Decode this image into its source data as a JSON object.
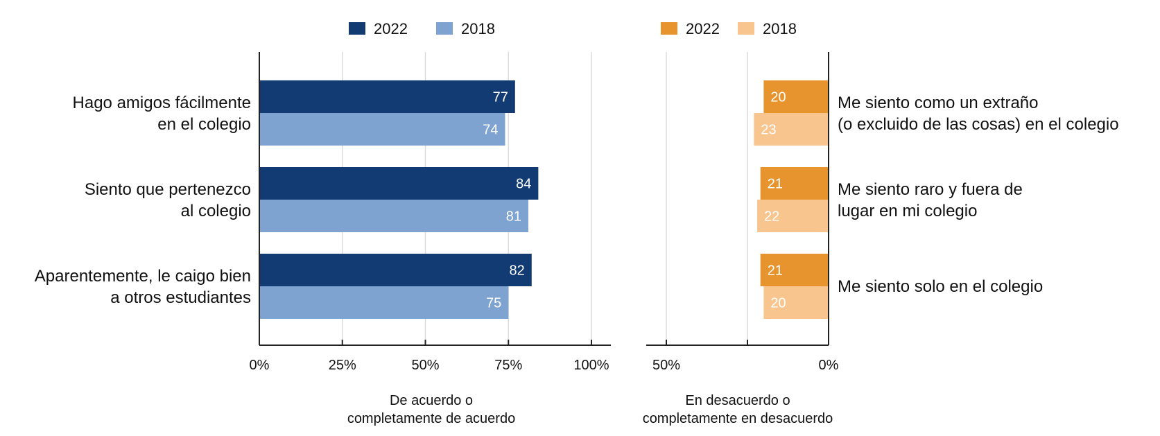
{
  "chart_data": [
    {
      "type": "bar",
      "orientation": "horizontal",
      "categories": [
        "Hago amigos fácilmente\nen el colegio",
        "Siento que pertenezco\nal colegio",
        "Aparentemente, le caigo bien\na otros estudiantes"
      ],
      "series": [
        {
          "name": "2022",
          "values": [
            77,
            84,
            82
          ],
          "color": "#123b73"
        },
        {
          "name": "2018",
          "values": [
            74,
            81,
            75
          ],
          "color": "#7fa3d0"
        }
      ],
      "xlim": [
        0,
        100
      ],
      "ticks": [
        "0%",
        "25%",
        "50%",
        "75%",
        "100%"
      ],
      "tick_values": [
        0,
        25,
        50,
        75,
        100
      ],
      "xlabel": "De acuerdo o\ncompletamente de acuerdo",
      "grid": true,
      "legend": "top"
    },
    {
      "type": "bar",
      "orientation": "horizontal",
      "direction": "reversed",
      "categories": [
        "Me siento como un extraño\n(o excluido de las cosas) en el colegio",
        "Me siento raro y fuera de\nlugar en mi colegio",
        "Me siento solo en el colegio"
      ],
      "series": [
        {
          "name": "2022",
          "values": [
            20,
            21,
            21
          ],
          "color": "#e8942e"
        },
        {
          "name": "2018",
          "values": [
            23,
            22,
            20
          ],
          "color": "#f9c58f"
        }
      ],
      "xlim": [
        0,
        50
      ],
      "ticks": [
        "50%",
        "",
        "0%"
      ],
      "tick_values": [
        50,
        25,
        0
      ],
      "xlabel": "En desacuerdo o\ncompletamente en desacuerdo",
      "grid": true,
      "legend": "top"
    }
  ]
}
